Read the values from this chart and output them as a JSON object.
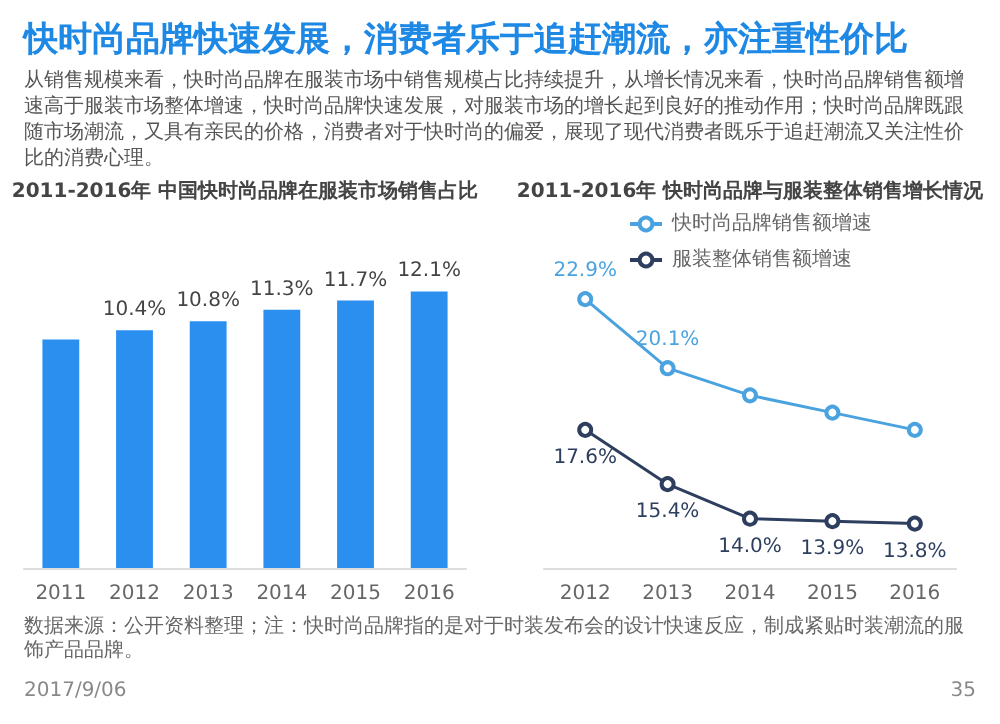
{
  "chart_data": [
    {
      "type": "other",
      "title": "快时尚品牌快速发展，消费者乐于追赶潮流，亦注重性价比",
      "subtitle": "从销售规模来看，快时尚品牌在服装市场中销售规模占比持续提升，从增长情况来看，快时尚品牌销售额增速高于服装市场整体增速，快时尚品牌快速发展，对服装市场的增长起到良好的推动作用；快时尚品牌既跟随市场潮流，又具有亲民的价格，消费者对于快时尚的偏爱，展现了现代消费者既乐于追赶潮流又关注性价比的消费心理。",
      "annotations": [
        "数据来源：公开资料整理；注：快时尚品牌指的是对于时装发布会的设计快速反应，制成紧贴时装潮流的服饰产品品牌。",
        "2017/9/06",
        "35"
      ]
    },
    {
      "type": "bar",
      "title": "2011-2016年 中国快时尚品牌在服装市场销售占比",
      "categories": [
        "2011",
        "2012",
        "2013",
        "2014",
        "2015",
        "2016"
      ],
      "values": [
        10.0,
        10.4,
        10.8,
        11.3,
        11.7,
        12.1
      ],
      "value_labels": [
        null,
        "10.4%",
        "10.8%",
        "11.3%",
        "11.7%",
        "12.1%"
      ],
      "color": "#2b8ff0"
    },
    {
      "type": "line",
      "title": "2011-2016年 快时尚品牌与服装整体销售增长情况",
      "categories": [
        "2012",
        "2013",
        "2014",
        "2015",
        "2016"
      ],
      "legend": "top",
      "marker": "circle",
      "series": [
        {
          "name": "快时尚品牌销售额增速",
          "color": "#4aa3df",
          "values": [
            22.9,
            20.1,
            19.0,
            18.3,
            17.6
          ],
          "value_labels": [
            "22.9%",
            "20.1%",
            null,
            null,
            null
          ]
        },
        {
          "name": "服装整体销售额增速",
          "color": "#2d3e5e",
          "values": [
            17.6,
            15.4,
            14.0,
            13.9,
            13.8
          ],
          "value_labels": [
            "17.6%",
            "15.4%",
            "14.0%",
            "13.9%",
            "13.8%"
          ]
        }
      ]
    }
  ]
}
